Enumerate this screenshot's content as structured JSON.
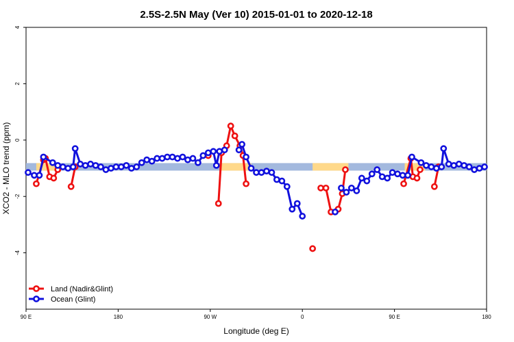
{
  "chart_data": {
    "type": "line",
    "title": "2.5S-2.5N May (Ver 10)   2015-01-01 to 2020-12-18",
    "xlabel": "Longitude (deg E)",
    "ylabel": "XCO2 - MLO trend (ppm)",
    "xlim": [
      90,
      540
    ],
    "ylim": [
      -6,
      4
    ],
    "x_ticks": [
      {
        "value": 90,
        "label": "90 E"
      },
      {
        "value": 180,
        "label": "180"
      },
      {
        "value": 270,
        "label": "90 W"
      },
      {
        "value": 360,
        "label": "0"
      },
      {
        "value": 450,
        "label": "90 E"
      },
      {
        "value": 540,
        "label": "180"
      }
    ],
    "y_ticks": [
      {
        "value": 4,
        "label": "4"
      },
      {
        "value": 2,
        "label": "2"
      },
      {
        "value": 0,
        "label": "0"
      },
      {
        "value": -2,
        "label": "-2"
      },
      {
        "value": -4,
        "label": "-4"
      }
    ],
    "grid": false,
    "legend_position": "bottom-left",
    "band": {
      "y_center": -0.95,
      "base_color": "#a3b9de",
      "highlight_color": "#ffd98a",
      "highlight_ranges": [
        [
          100,
          120
        ],
        [
          280,
          310
        ],
        [
          370,
          405
        ],
        [
          460,
          480
        ]
      ]
    },
    "series": [
      {
        "name": "Land (Nadir&Glint)",
        "color": "#ee1111",
        "segments": [
          [
            [
              100,
              -1.55
            ],
            [
              107,
              -0.7
            ],
            [
              109,
              -0.65
            ],
            [
              113,
              -1.3
            ],
            [
              117,
              -1.35
            ],
            [
              121,
              -1.05
            ]
          ],
          [
            [
              134,
              -1.65
            ],
            [
              138,
              -0.95
            ]
          ],
          [
            [
              268,
              -0.55
            ]
          ],
          [
            [
              278,
              -2.25
            ],
            [
              281,
              -0.45
            ],
            [
              286,
              -0.2
            ],
            [
              290,
              0.5
            ],
            [
              294,
              0.15
            ],
            [
              299,
              -0.2
            ],
            [
              302,
              -0.55
            ],
            [
              305,
              -1.55
            ]
          ],
          [
            [
              370,
              -3.85
            ]
          ],
          [
            [
              378,
              -1.7
            ],
            [
              383,
              -1.7
            ],
            [
              388,
              -2.55
            ],
            [
              395,
              -2.45
            ],
            [
              399,
              -1.9
            ],
            [
              402,
              -1.05
            ]
          ],
          [
            [
              459,
              -1.55
            ],
            [
              466,
              -0.65
            ],
            [
              468,
              -1.3
            ],
            [
              472,
              -1.35
            ],
            [
              475,
              -1.05
            ]
          ],
          [
            [
              489,
              -1.65
            ],
            [
              493,
              -0.95
            ]
          ]
        ]
      },
      {
        "name": "Ocean (Glint)",
        "color": "#1111dd",
        "segments": [
          [
            [
              92,
              -1.15
            ],
            [
              98,
              -1.25
            ],
            [
              103,
              -1.25
            ],
            [
              107,
              -0.6
            ],
            [
              116,
              -0.8
            ],
            [
              121,
              -0.9
            ],
            [
              126,
              -0.95
            ],
            [
              131,
              -1.0
            ],
            [
              136,
              -0.95
            ],
            [
              138,
              -0.3
            ],
            [
              143,
              -0.85
            ],
            [
              148,
              -0.9
            ],
            [
              153,
              -0.85
            ],
            [
              158,
              -0.9
            ],
            [
              163,
              -0.95
            ],
            [
              168,
              -1.05
            ],
            [
              173,
              -1.0
            ],
            [
              178,
              -0.95
            ],
            [
              183,
              -0.95
            ],
            [
              188,
              -0.9
            ],
            [
              193,
              -1.0
            ],
            [
              198,
              -0.95
            ],
            [
              203,
              -0.8
            ],
            [
              208,
              -0.7
            ],
            [
              213,
              -0.75
            ],
            [
              218,
              -0.65
            ],
            [
              223,
              -0.65
            ],
            [
              228,
              -0.6
            ],
            [
              233,
              -0.6
            ],
            [
              238,
              -0.65
            ],
            [
              243,
              -0.6
            ],
            [
              248,
              -0.7
            ],
            [
              253,
              -0.65
            ],
            [
              258,
              -0.8
            ],
            [
              263,
              -0.55
            ],
            [
              268,
              -0.45
            ],
            [
              273,
              -0.4
            ],
            [
              276,
              -0.9
            ],
            [
              279,
              -0.4
            ],
            [
              284,
              -0.35
            ]
          ],
          [
            [
              298,
              -0.35
            ],
            [
              301,
              -0.15
            ],
            [
              305,
              -0.6
            ],
            [
              310,
              -1.0
            ],
            [
              315,
              -1.15
            ],
            [
              320,
              -1.15
            ],
            [
              325,
              -1.1
            ],
            [
              330,
              -1.15
            ],
            [
              335,
              -1.4
            ],
            [
              340,
              -1.45
            ],
            [
              345,
              -1.65
            ],
            [
              350,
              -2.45
            ],
            [
              355,
              -2.25
            ],
            [
              360,
              -2.7
            ]
          ],
          [
            [
              392,
              -2.55
            ]
          ],
          [
            [
              398,
              -1.7
            ],
            [
              403,
              -1.85
            ],
            [
              408,
              -1.7
            ],
            [
              413,
              -1.8
            ],
            [
              418,
              -1.35
            ],
            [
              423,
              -1.45
            ],
            [
              428,
              -1.2
            ],
            [
              433,
              -1.05
            ],
            [
              438,
              -1.3
            ],
            [
              443,
              -1.35
            ],
            [
              448,
              -1.15
            ],
            [
              453,
              -1.2
            ],
            [
              458,
              -1.25
            ],
            [
              463,
              -1.25
            ],
            [
              467,
              -0.6
            ],
            [
              476,
              -0.8
            ],
            [
              481,
              -0.9
            ],
            [
              486,
              -0.95
            ],
            [
              491,
              -1.0
            ],
            [
              496,
              -0.95
            ],
            [
              498,
              -0.3
            ],
            [
              503,
              -0.85
            ],
            [
              508,
              -0.9
            ],
            [
              513,
              -0.85
            ],
            [
              518,
              -0.9
            ],
            [
              523,
              -0.95
            ],
            [
              528,
              -1.05
            ],
            [
              533,
              -1.0
            ],
            [
              538,
              -0.95
            ]
          ]
        ]
      }
    ]
  }
}
